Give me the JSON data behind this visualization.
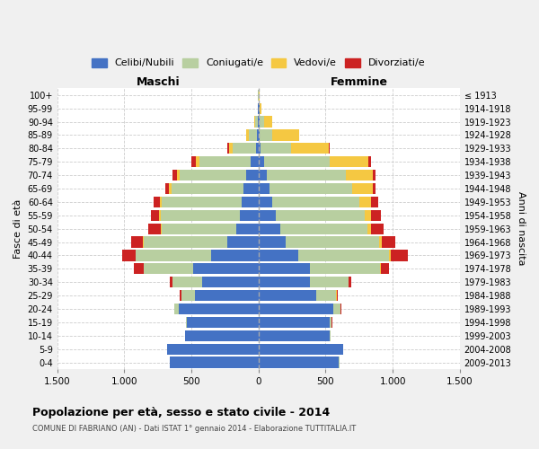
{
  "age_groups": [
    "0-4",
    "5-9",
    "10-14",
    "15-19",
    "20-24",
    "25-29",
    "30-34",
    "35-39",
    "40-44",
    "45-49",
    "50-54",
    "55-59",
    "60-64",
    "65-69",
    "70-74",
    "75-79",
    "80-84",
    "85-89",
    "90-94",
    "95-99",
    "100+"
  ],
  "birth_years": [
    "2009-2013",
    "2004-2008",
    "1999-2003",
    "1994-1998",
    "1989-1993",
    "1984-1988",
    "1979-1983",
    "1974-1978",
    "1969-1973",
    "1964-1968",
    "1959-1963",
    "1954-1958",
    "1949-1953",
    "1944-1948",
    "1939-1943",
    "1934-1938",
    "1929-1933",
    "1924-1928",
    "1919-1923",
    "1914-1918",
    "≤ 1913"
  ],
  "males": {
    "celibi": [
      660,
      680,
      545,
      535,
      595,
      475,
      420,
      485,
      355,
      235,
      165,
      140,
      125,
      110,
      90,
      60,
      20,
      10,
      8,
      4,
      2
    ],
    "coniugati": [
      2,
      1,
      2,
      5,
      30,
      100,
      220,
      370,
      560,
      620,
      560,
      590,
      600,
      540,
      500,
      380,
      170,
      60,
      20,
      3,
      1
    ],
    "vedovi": [
      0,
      0,
      0,
      0,
      1,
      1,
      1,
      2,
      3,
      5,
      5,
      10,
      10,
      15,
      20,
      30,
      30,
      20,
      5,
      1,
      0
    ],
    "divorziati": [
      0,
      0,
      0,
      2,
      5,
      10,
      20,
      70,
      100,
      90,
      90,
      60,
      50,
      30,
      30,
      30,
      10,
      0,
      0,
      0,
      0
    ]
  },
  "females": {
    "nubili": [
      600,
      630,
      530,
      530,
      560,
      430,
      380,
      385,
      295,
      200,
      160,
      130,
      100,
      80,
      60,
      40,
      15,
      10,
      10,
      5,
      2
    ],
    "coniugate": [
      3,
      3,
      5,
      15,
      50,
      150,
      290,
      520,
      680,
      700,
      650,
      660,
      650,
      620,
      590,
      490,
      230,
      90,
      30,
      5,
      1
    ],
    "vedove": [
      0,
      0,
      0,
      0,
      1,
      2,
      3,
      5,
      10,
      20,
      30,
      50,
      90,
      150,
      200,
      290,
      280,
      200,
      60,
      10,
      2
    ],
    "divorziate": [
      0,
      0,
      0,
      2,
      5,
      10,
      20,
      60,
      130,
      100,
      90,
      70,
      50,
      25,
      25,
      20,
      5,
      0,
      0,
      0,
      0
    ]
  },
  "colors": {
    "celibi": "#4472c4",
    "coniugati": "#b8cfa0",
    "vedovi": "#f5c842",
    "divorziati": "#cc2222"
  },
  "xlim": 1500,
  "title": "Popolazione per età, sesso e stato civile - 2014",
  "subtitle": "COMUNE DI FABRIANO (AN) - Dati ISTAT 1° gennaio 2014 - Elaborazione TUTTITALIA.IT",
  "xlabel_left": "Maschi",
  "xlabel_right": "Femmine",
  "ylabel_left": "Fasce di età",
  "ylabel_right": "Anni di nascita",
  "legend_labels": [
    "Celibi/Nubili",
    "Coniugati/e",
    "Vedovi/e",
    "Divorziati/e"
  ],
  "bg_color": "#f0f0f0",
  "plot_bg_color": "#ffffff"
}
